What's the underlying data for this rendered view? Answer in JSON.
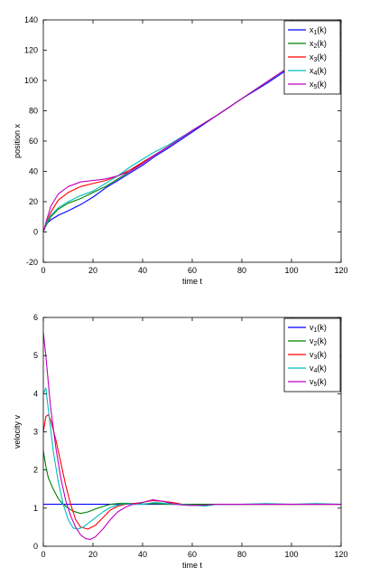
{
  "chart_data": [
    {
      "type": "line",
      "xlabel": "time t",
      "ylabel": "position x",
      "xlim": [
        0,
        120
      ],
      "ylim": [
        -20,
        140
      ],
      "xticks": [
        0,
        20,
        40,
        60,
        80,
        100,
        120
      ],
      "yticks": [
        -20,
        0,
        20,
        40,
        60,
        80,
        100,
        120,
        140
      ],
      "grid": false,
      "legend_position": "top-right",
      "series": [
        {
          "name": "x1(k)",
          "legend_main": "x",
          "legend_sub": "1",
          "legend_suffix": "(k)",
          "color": "#0000ff",
          "x": [
            0,
            1,
            3,
            6,
            10,
            15,
            20,
            25,
            30,
            35,
            40,
            45,
            50,
            60,
            70,
            80,
            90,
            100,
            110,
            120
          ],
          "y": [
            0,
            5,
            8,
            11,
            14,
            18,
            23,
            29,
            34,
            39,
            44,
            50,
            55,
            66,
            77,
            88,
            98,
            109,
            120,
            131
          ]
        },
        {
          "name": "x2(k)",
          "legend_main": "x",
          "legend_sub": "2",
          "legend_suffix": "(k)",
          "color": "#008000",
          "x": [
            0,
            1,
            3,
            6,
            10,
            15,
            20,
            25,
            30,
            35,
            40,
            45,
            50,
            60,
            70,
            80,
            90,
            100,
            110,
            120
          ],
          "y": [
            0,
            4,
            10,
            15,
            19,
            22,
            26,
            30,
            35,
            40,
            46,
            51,
            56,
            67,
            77,
            88,
            99,
            110,
            121,
            131
          ]
        },
        {
          "name": "x3(k)",
          "legend_main": "x",
          "legend_sub": "3",
          "legend_suffix": "(k)",
          "color": "#ff0000",
          "x": [
            0,
            1,
            3,
            6,
            10,
            15,
            20,
            25,
            30,
            35,
            40,
            45,
            50,
            60,
            70,
            80,
            90,
            100,
            110,
            120
          ],
          "y": [
            0,
            5,
            13,
            21,
            26,
            30,
            32,
            34,
            37,
            41,
            46,
            51,
            56,
            67,
            77,
            88,
            99,
            110,
            121,
            131
          ]
        },
        {
          "name": "x4(k)",
          "legend_main": "x",
          "legend_sub": "4",
          "legend_suffix": "(k)",
          "color": "#00bfbf",
          "x": [
            0,
            1,
            3,
            6,
            10,
            15,
            20,
            25,
            30,
            35,
            40,
            45,
            50,
            60,
            70,
            80,
            90,
            100,
            110,
            120
          ],
          "y": [
            0,
            5,
            11,
            16,
            20,
            24,
            27,
            32,
            37,
            43,
            48,
            53,
            57,
            67,
            77,
            88,
            99,
            110,
            121,
            131
          ]
        },
        {
          "name": "x5(k)",
          "legend_main": "x",
          "legend_sub": "5",
          "legend_suffix": "(k)",
          "color": "#bf00bf",
          "x": [
            0,
            1,
            3,
            6,
            10,
            15,
            20,
            25,
            30,
            35,
            40,
            45,
            50,
            60,
            70,
            80,
            90,
            100,
            110,
            120
          ],
          "y": [
            0,
            6,
            17,
            25,
            30,
            33,
            34,
            35,
            37,
            40,
            45,
            51,
            56,
            67,
            77,
            88,
            99,
            110,
            121,
            131
          ]
        }
      ]
    },
    {
      "type": "line",
      "xlabel": "time t",
      "ylabel": "velocity v",
      "xlim": [
        0,
        120
      ],
      "ylim": [
        0,
        6
      ],
      "xticks": [
        0,
        20,
        40,
        60,
        80,
        100,
        120
      ],
      "yticks": [
        0,
        1,
        2,
        3,
        4,
        5,
        6
      ],
      "grid": false,
      "legend_position": "top-right",
      "series": [
        {
          "name": "v1(k)",
          "legend_main": "v",
          "legend_sub": "1",
          "legend_suffix": "(k)",
          "color": "#0000ff",
          "x": [
            0,
            120
          ],
          "y": [
            1.1,
            1.1
          ]
        },
        {
          "name": "v2(k)",
          "legend_main": "v",
          "legend_sub": "2",
          "legend_suffix": "(k)",
          "color": "#008000",
          "x": [
            0,
            1,
            2,
            4,
            6,
            8,
            10,
            12,
            15,
            18,
            21,
            24,
            27,
            30,
            33,
            36,
            40,
            45,
            50,
            55,
            60,
            70,
            80,
            90,
            100,
            110,
            120
          ],
          "y": [
            2.5,
            2.1,
            1.8,
            1.5,
            1.25,
            1.1,
            1.0,
            0.92,
            0.86,
            0.9,
            0.98,
            1.04,
            1.1,
            1.12,
            1.13,
            1.12,
            1.11,
            1.12,
            1.1,
            1.1,
            1.1,
            1.1,
            1.1,
            1.1,
            1.1,
            1.1,
            1.1
          ]
        },
        {
          "name": "v3(k)",
          "legend_main": "v",
          "legend_sub": "3",
          "legend_suffix": "(k)",
          "color": "#ff0000",
          "x": [
            0,
            1,
            2,
            3,
            5,
            7,
            9,
            11,
            13,
            15,
            18,
            21,
            24,
            27,
            30,
            33,
            36,
            40,
            44,
            48,
            52,
            56,
            60,
            65,
            70,
            80,
            90,
            100,
            110,
            120
          ],
          "y": [
            3.0,
            3.4,
            3.45,
            3.3,
            2.8,
            2.2,
            1.6,
            1.1,
            0.7,
            0.5,
            0.45,
            0.55,
            0.75,
            0.95,
            1.05,
            1.1,
            1.12,
            1.15,
            1.2,
            1.18,
            1.15,
            1.1,
            1.08,
            1.07,
            1.1,
            1.1,
            1.1,
            1.1,
            1.1,
            1.1
          ]
        },
        {
          "name": "v4(k)",
          "legend_main": "v",
          "legend_sub": "4",
          "legend_suffix": "(k)",
          "color": "#00bfbf",
          "x": [
            0,
            1,
            2,
            4,
            6,
            8,
            10,
            12,
            14,
            16,
            18,
            21,
            24,
            27,
            30,
            33,
            36,
            40,
            45,
            50,
            55,
            60,
            65,
            70,
            80,
            90,
            100,
            110,
            120
          ],
          "y": [
            4.0,
            4.15,
            3.6,
            2.5,
            1.7,
            1.1,
            0.7,
            0.48,
            0.45,
            0.5,
            0.6,
            0.75,
            0.9,
            1.02,
            1.08,
            1.12,
            1.1,
            1.1,
            1.15,
            1.12,
            1.1,
            1.08,
            1.05,
            1.1,
            1.1,
            1.12,
            1.1,
            1.12,
            1.1
          ]
        },
        {
          "name": "v5(k)",
          "legend_main": "v",
          "legend_sub": "5",
          "legend_suffix": "(k)",
          "color": "#bf00bf",
          "x": [
            0,
            1,
            2,
            3,
            5,
            7,
            9,
            11,
            13,
            15,
            17,
            19,
            21,
            24,
            27,
            30,
            33,
            36,
            40,
            44,
            48,
            52,
            56,
            60,
            65,
            70,
            80,
            90,
            100,
            110,
            120
          ],
          "y": [
            5.6,
            5.0,
            4.3,
            3.6,
            2.6,
            1.8,
            1.2,
            0.8,
            0.5,
            0.3,
            0.2,
            0.18,
            0.25,
            0.45,
            0.7,
            0.9,
            1.02,
            1.1,
            1.15,
            1.22,
            1.18,
            1.12,
            1.08,
            1.07,
            1.08,
            1.1,
            1.1,
            1.1,
            1.1,
            1.1,
            1.1
          ]
        }
      ]
    }
  ]
}
